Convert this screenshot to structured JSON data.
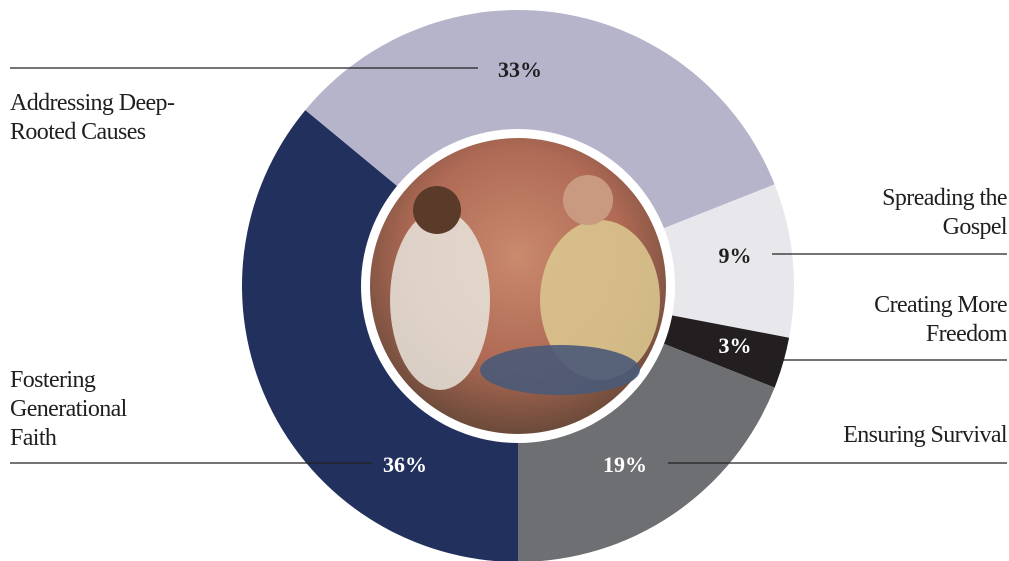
{
  "chart_data": {
    "type": "donut",
    "categories": [
      "Fostering Generational Faith",
      "Addressing Deep-Rooted Causes",
      "Spreading the Gospel",
      "Creating More Freedom",
      "Ensuring Survival"
    ],
    "values": [
      36,
      33,
      9,
      3,
      19
    ],
    "value_labels": [
      "36%",
      "33%",
      "9%",
      "3%",
      "19%"
    ],
    "colors": [
      "#22305e",
      "#b5b4ca",
      "#e7e7ec",
      "#231f20",
      "#6e6f72"
    ]
  }
}
